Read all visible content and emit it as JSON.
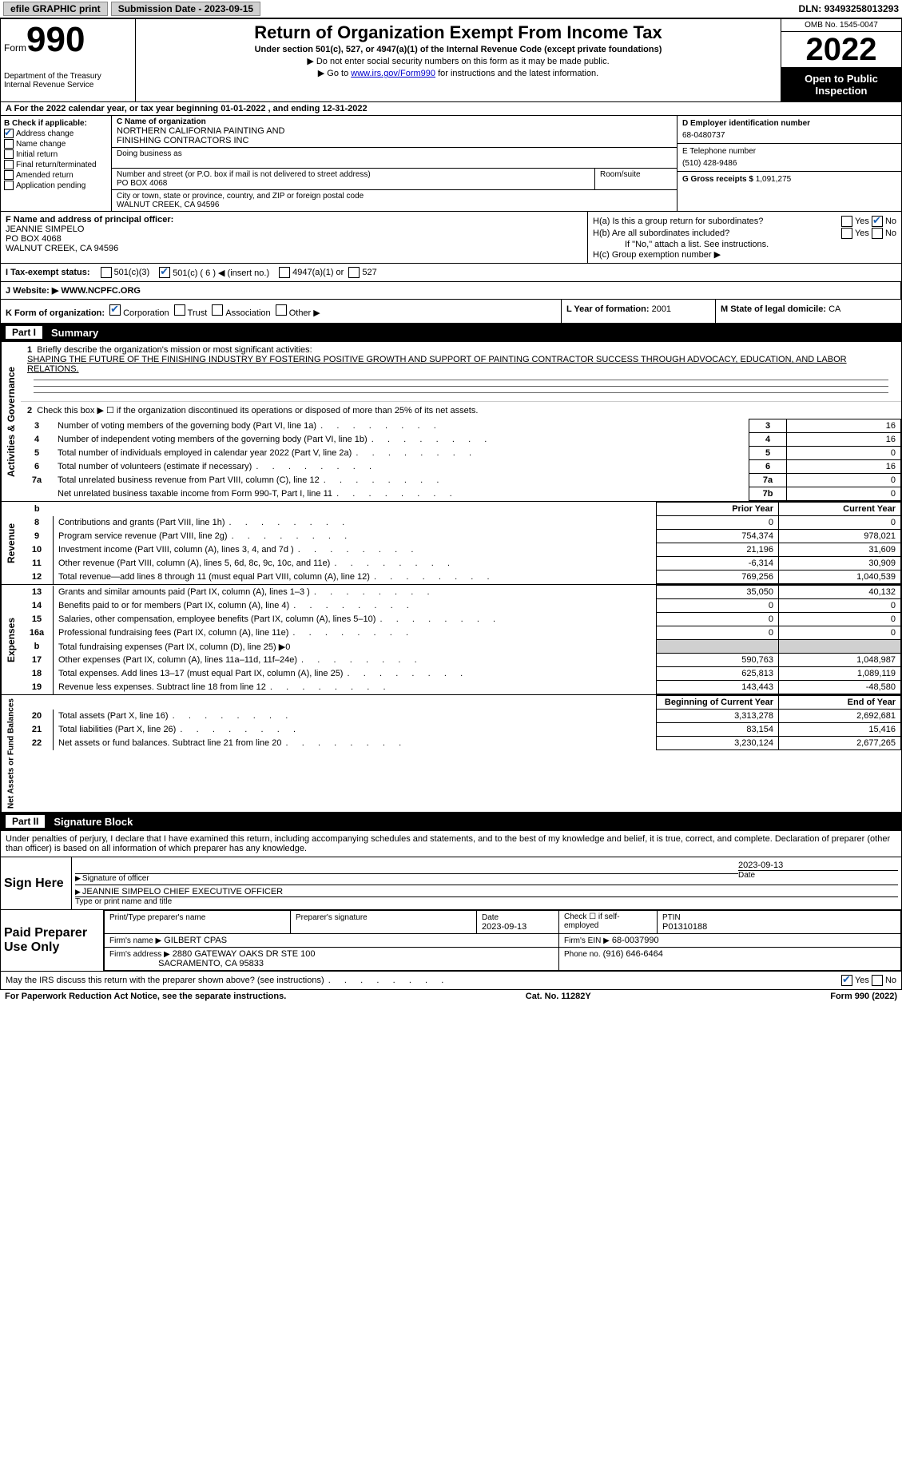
{
  "top": {
    "efile": "efile GRAPHIC print",
    "sub_date_lbl": "Submission Date - 2023-09-15",
    "dln_lbl": "DLN:",
    "dln": "93493258013293"
  },
  "header": {
    "form_small": "Form",
    "form_big": "990",
    "dept": "Department of the Treasury\nInternal Revenue Service",
    "title": "Return of Organization Exempt From Income Tax",
    "sub": "Under section 501(c), 527, or 4947(a)(1) of the Internal Revenue Code (except private foundations)",
    "note1": "▶ Do not enter social security numbers on this form as it may be made public.",
    "note2_pre": "▶ Go to ",
    "note2_link": "www.irs.gov/Form990",
    "note2_post": " for instructions and the latest information.",
    "omb": "OMB No. 1545-0047",
    "year": "2022",
    "inspect": "Open to Public Inspection"
  },
  "rowA": "A For the 2022 calendar year, or tax year beginning 01-01-2022   , and ending 12-31-2022",
  "colB": {
    "hdr": "B Check if applicable:",
    "addr_change": "Address change",
    "name_change": "Name change",
    "initial": "Initial return",
    "final": "Final return/terminated",
    "amended": "Amended return",
    "app_pending": "Application pending"
  },
  "colC": {
    "name_lbl": "C Name of organization",
    "name1": "NORTHERN CALIFORNIA PAINTING AND",
    "name2": "FINISHING CONTRACTORS INC",
    "dba_lbl": "Doing business as",
    "addr_lbl": "Number and street (or P.O. box if mail is not delivered to street address)",
    "room_lbl": "Room/suite",
    "addr": "PO BOX 4068",
    "city_lbl": "City or town, state or province, country, and ZIP or foreign postal code",
    "city": "WALNUT CREEK, CA  94596"
  },
  "colD": {
    "ein_lbl": "D Employer identification number",
    "ein": "68-0480737",
    "tel_lbl": "E Telephone number",
    "tel": "(510) 428-9486",
    "gross_lbl": "G Gross receipts $",
    "gross": "1,091,275"
  },
  "officer": {
    "lbl": "F Name and address of principal officer:",
    "name": "JEANNIE SIMPELO",
    "addr1": "PO BOX 4068",
    "addr2": "WALNUT CREEK, CA  94596"
  },
  "h": {
    "a_lbl": "H(a)  Is this a group return for subordinates?",
    "b_lbl": "H(b)  Are all subordinates included?",
    "b_note": "If \"No,\" attach a list. See instructions.",
    "c_lbl": "H(c)  Group exemption number ▶"
  },
  "status": {
    "i_lbl": "I  Tax-exempt status:",
    "c3": "501(c)(3)",
    "c": "501(c) ( 6 ) ◀ (insert no.)",
    "a4947": "4947(a)(1) or",
    "s527": "527"
  },
  "website": {
    "lbl": "J Website: ▶",
    "val": "WWW.NCPFC.ORG"
  },
  "k": {
    "lbl": "K Form of organization:",
    "corp": "Corporation",
    "trust": "Trust",
    "assoc": "Association",
    "other": "Other ▶",
    "l_lbl": "L Year of formation:",
    "l_val": "2001",
    "m_lbl": "M State of legal domicile:",
    "m_val": "CA"
  },
  "part1": {
    "part": "Part I",
    "title": "Summary",
    "side1": "Activities & Governance",
    "side2": "Revenue",
    "side3": "Expenses",
    "side4": "Net Assets or Fund Balances",
    "l1": "Briefly describe the organization's mission or most significant activities:",
    "mission": "SHAPING THE FUTURE OF THE FINISHING INDUSTRY BY FOSTERING POSITIVE GROWTH AND SUPPORT OF PAINTING CONTRACTOR SUCCESS THROUGH ADVOCACY, EDUCATION, AND LABOR RELATIONS.",
    "l2": "Check this box ▶ ☐ if the organization discontinued its operations or disposed of more than 25% of its net assets.",
    "rows": [
      {
        "n": "3",
        "txt": "Number of voting members of the governing body (Part VI, line 1a)",
        "box": "3",
        "val": "16"
      },
      {
        "n": "4",
        "txt": "Number of independent voting members of the governing body (Part VI, line 1b)",
        "box": "4",
        "val": "16"
      },
      {
        "n": "5",
        "txt": "Total number of individuals employed in calendar year 2022 (Part V, line 2a)",
        "box": "5",
        "val": "0"
      },
      {
        "n": "6",
        "txt": "Total number of volunteers (estimate if necessary)",
        "box": "6",
        "val": "16"
      },
      {
        "n": "7a",
        "txt": "Total unrelated business revenue from Part VIII, column (C), line 12",
        "box": "7a",
        "val": "0"
      },
      {
        "n": "",
        "txt": "Net unrelated business taxable income from Form 990-T, Part I, line 11",
        "box": "7b",
        "val": "0"
      }
    ],
    "prior": "Prior Year",
    "current": "Current Year",
    "rev": [
      {
        "n": "8",
        "txt": "Contributions and grants (Part VIII, line 1h)",
        "p": "0",
        "c": "0"
      },
      {
        "n": "9",
        "txt": "Program service revenue (Part VIII, line 2g)",
        "p": "754,374",
        "c": "978,021"
      },
      {
        "n": "10",
        "txt": "Investment income (Part VIII, column (A), lines 3, 4, and 7d )",
        "p": "21,196",
        "c": "31,609"
      },
      {
        "n": "11",
        "txt": "Other revenue (Part VIII, column (A), lines 5, 6d, 8c, 9c, 10c, and 11e)",
        "p": "-6,314",
        "c": "30,909"
      },
      {
        "n": "12",
        "txt": "Total revenue—add lines 8 through 11 (must equal Part VIII, column (A), line 12)",
        "p": "769,256",
        "c": "1,040,539"
      }
    ],
    "exp": [
      {
        "n": "13",
        "txt": "Grants and similar amounts paid (Part IX, column (A), lines 1–3 )",
        "p": "35,050",
        "c": "40,132"
      },
      {
        "n": "14",
        "txt": "Benefits paid to or for members (Part IX, column (A), line 4)",
        "p": "0",
        "c": "0"
      },
      {
        "n": "15",
        "txt": "Salaries, other compensation, employee benefits (Part IX, column (A), lines 5–10)",
        "p": "0",
        "c": "0"
      },
      {
        "n": "16a",
        "txt": "Professional fundraising fees (Part IX, column (A), line 11e)",
        "p": "0",
        "c": "0"
      },
      {
        "n": "b",
        "txt": "Total fundraising expenses (Part IX, column (D), line 25) ▶0",
        "p": "shade",
        "c": "shade"
      },
      {
        "n": "17",
        "txt": "Other expenses (Part IX, column (A), lines 11a–11d, 11f–24e)",
        "p": "590,763",
        "c": "1,048,987"
      },
      {
        "n": "18",
        "txt": "Total expenses. Add lines 13–17 (must equal Part IX, column (A), line 25)",
        "p": "625,813",
        "c": "1,089,119"
      },
      {
        "n": "19",
        "txt": "Revenue less expenses. Subtract line 18 from line 12",
        "p": "143,443",
        "c": "-48,580"
      }
    ],
    "net_hdr_p": "Beginning of Current Year",
    "net_hdr_c": "End of Year",
    "net": [
      {
        "n": "20",
        "txt": "Total assets (Part X, line 16)",
        "p": "3,313,278",
        "c": "2,692,681"
      },
      {
        "n": "21",
        "txt": "Total liabilities (Part X, line 26)",
        "p": "83,154",
        "c": "15,416"
      },
      {
        "n": "22",
        "txt": "Net assets or fund balances. Subtract line 21 from line 20",
        "p": "3,230,124",
        "c": "2,677,265"
      }
    ]
  },
  "part2": {
    "part": "Part II",
    "title": "Signature Block",
    "decl": "Under penalties of perjury, I declare that I have examined this return, including accompanying schedules and statements, and to the best of my knowledge and belief, it is true, correct, and complete. Declaration of preparer (other than officer) is based on all information of which preparer has any knowledge.",
    "sign_here": "Sign Here",
    "sig_officer": "Signature of officer",
    "sig_date": "2023-09-13",
    "sig_date_lbl": "Date",
    "sig_name": "JEANNIE SIMPELO  CHIEF EXECUTIVE OFFICER",
    "sig_name_lbl": "Type or print name and title",
    "paid": "Paid Preparer Use Only",
    "prep_name_lbl": "Print/Type preparer's name",
    "prep_sig_lbl": "Preparer's signature",
    "prep_date_lbl": "Date",
    "prep_date": "2023-09-13",
    "prep_chk": "Check ☐ if self-employed",
    "ptin_lbl": "PTIN",
    "ptin": "P01310188",
    "firm_name_lbl": "Firm's name ▶",
    "firm_name": "GILBERT CPAS",
    "firm_ein_lbl": "Firm's EIN ▶",
    "firm_ein": "68-0037990",
    "firm_addr_lbl": "Firm's address ▶",
    "firm_addr1": "2880 GATEWAY OAKS DR STE 100",
    "firm_addr2": "SACRAMENTO, CA  95833",
    "phone_lbl": "Phone no.",
    "phone": "(916) 646-6464",
    "discuss": "May the IRS discuss this return with the preparer shown above? (see instructions)",
    "yes": "Yes",
    "no": "No"
  },
  "footer": {
    "left": "For Paperwork Reduction Act Notice, see the separate instructions.",
    "mid": "Cat. No. 11282Y",
    "right": "Form 990 (2022)"
  }
}
